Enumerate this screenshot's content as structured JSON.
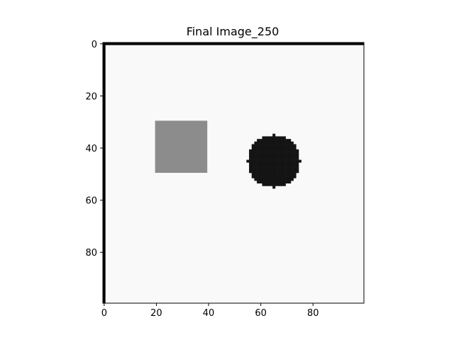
{
  "chart_data": {
    "type": "heatmap",
    "title": "Final Image_250",
    "xlabel": "",
    "ylabel": "",
    "image_size": [
      100,
      100
    ],
    "xlim": [
      -0.5,
      99.5
    ],
    "ylim": [
      99.5,
      -0.5
    ],
    "grid": false,
    "colormap": "gray",
    "background_color": "#f9f9f9",
    "x_ticks": [
      0,
      20,
      40,
      60,
      80
    ],
    "y_ticks": [
      0,
      20,
      40,
      60,
      80
    ],
    "x_tick_labels": [
      "0",
      "20",
      "40",
      "60",
      "80"
    ],
    "y_tick_labels": [
      "0",
      "20",
      "40",
      "60",
      "80"
    ],
    "border_lines": [
      {
        "edge": "top",
        "row": 0,
        "color": "#000000"
      },
      {
        "edge": "left",
        "col": 0,
        "color": "#000000"
      }
    ],
    "shapes": [
      {
        "shape": "square",
        "col_range": [
          20,
          39
        ],
        "row_range": [
          30,
          49
        ],
        "color": "#8c8c8c"
      },
      {
        "shape": "circle",
        "center_col": 65,
        "center_row": 45,
        "radius": 10,
        "color": "#141414"
      }
    ]
  }
}
